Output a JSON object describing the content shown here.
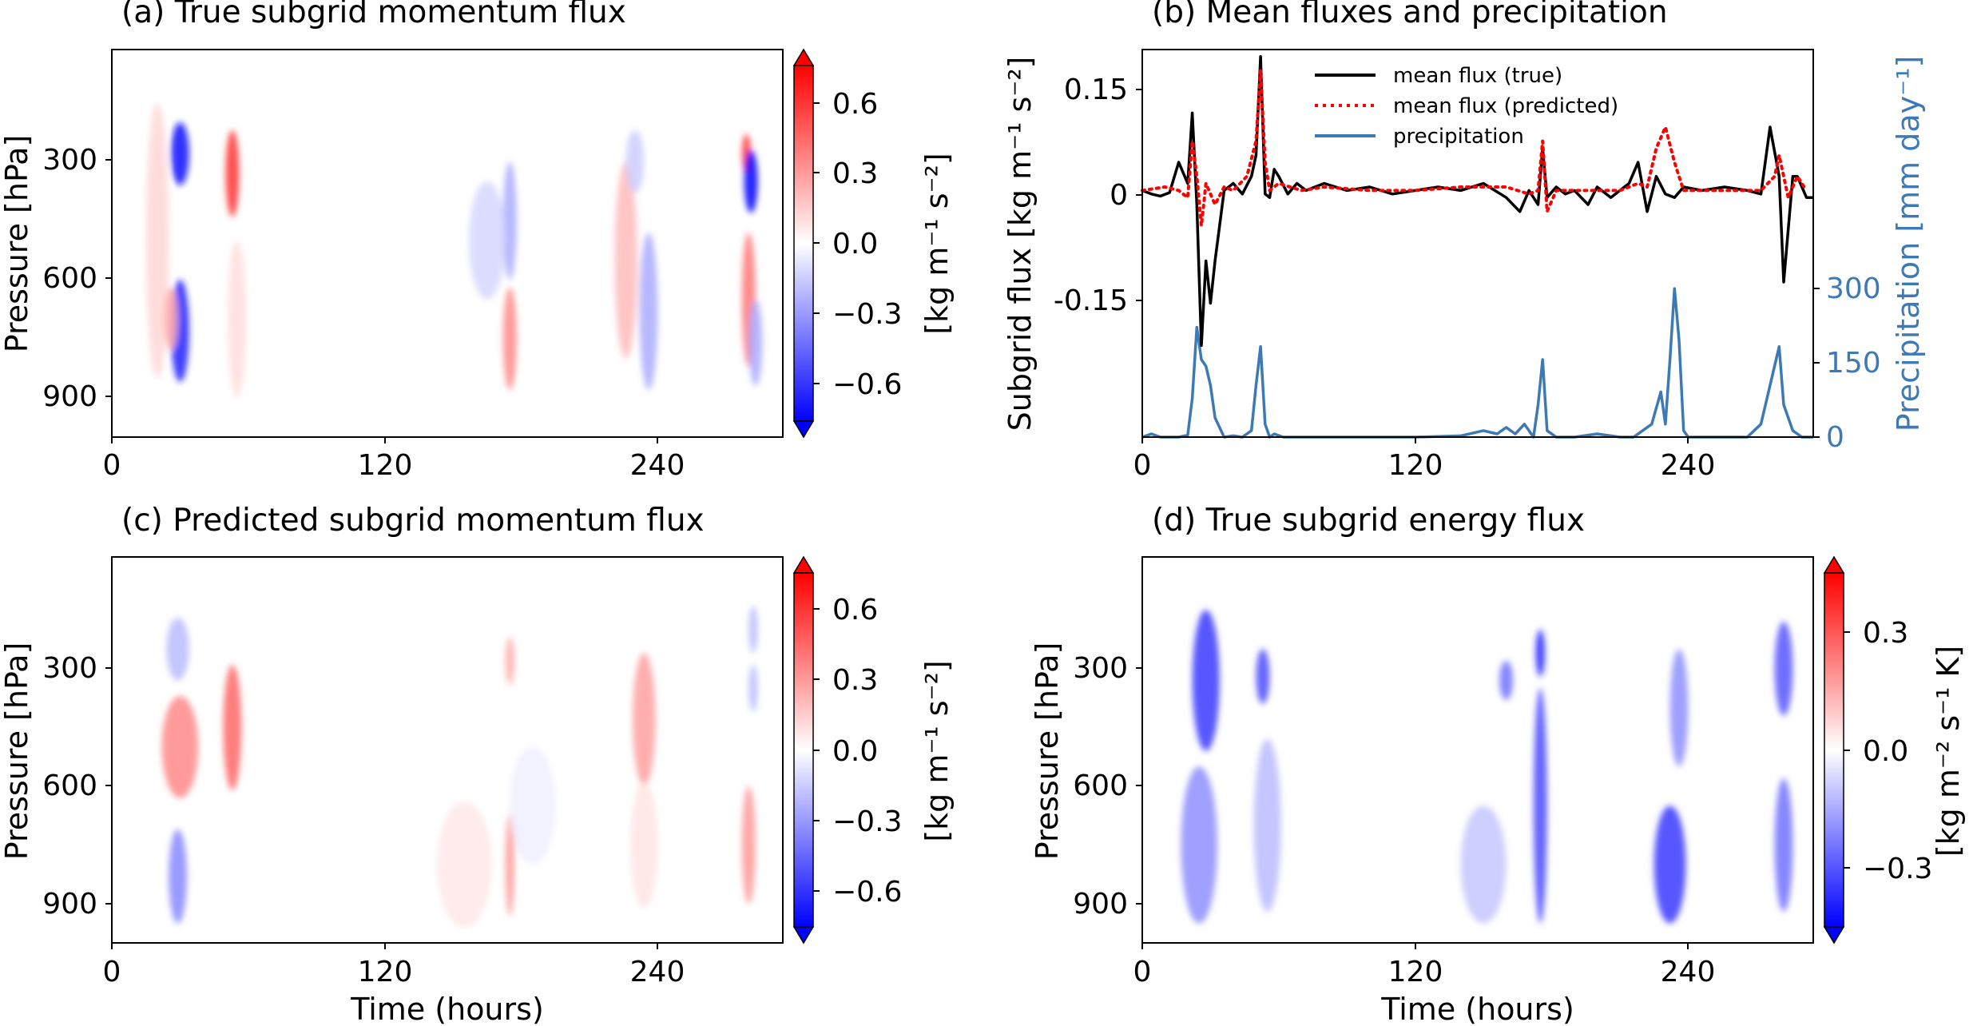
{
  "figure": {
    "x_ticks": [
      "0",
      "120",
      "240"
    ],
    "pressure_ticks": [
      "300",
      "600",
      "900"
    ]
  },
  "chart_data": [
    {
      "id": "a",
      "type": "heatmap",
      "title": "(a) True subgrid momentum flux",
      "xlabel": "",
      "ylabel": "Pressure [hPa]",
      "xlim": [
        0,
        295
      ],
      "ylim": [
        1000,
        15
      ],
      "colorbar": {
        "label": "[kg m⁻¹ s⁻²]",
        "ticks": [
          "0.6",
          "0.3",
          "0.0",
          "−0.3",
          "−0.6"
        ],
        "range": [
          -0.75,
          0.75
        ],
        "colormap": "bwr",
        "low_color": "#0000ff",
        "high_color": "#ff0000"
      },
      "features": [
        {
          "t": 20,
          "p": 500,
          "dt": 5,
          "dp": 350,
          "v": 0.12
        },
        {
          "t": 30,
          "p": 280,
          "dt": 4,
          "dp": 80,
          "v": -0.7
        },
        {
          "t": 30,
          "p": 730,
          "dt": 4,
          "dp": 130,
          "v": -0.65
        },
        {
          "t": 26,
          "p": 700,
          "dt": 3,
          "dp": 80,
          "v": 0.25
        },
        {
          "t": 53,
          "p": 330,
          "dt": 3,
          "dp": 110,
          "v": 0.6
        },
        {
          "t": 55,
          "p": 700,
          "dt": 4,
          "dp": 200,
          "v": 0.1
        },
        {
          "t": 175,
          "p": 750,
          "dt": 3,
          "dp": 130,
          "v": 0.35
        },
        {
          "t": 175,
          "p": 450,
          "dt": 3,
          "dp": 150,
          "v": -0.25
        },
        {
          "t": 165,
          "p": 500,
          "dt": 8,
          "dp": 150,
          "v": -0.12
        },
        {
          "t": 226,
          "p": 550,
          "dt": 5,
          "dp": 250,
          "v": 0.2
        },
        {
          "t": 236,
          "p": 680,
          "dt": 4,
          "dp": 200,
          "v": -0.25
        },
        {
          "t": 230,
          "p": 300,
          "dt": 4,
          "dp": 80,
          "v": -0.15
        },
        {
          "t": 279,
          "p": 280,
          "dt": 2,
          "dp": 50,
          "v": 0.6
        },
        {
          "t": 281,
          "p": 350,
          "dt": 3,
          "dp": 80,
          "v": -0.75
        },
        {
          "t": 280,
          "p": 650,
          "dt": 3,
          "dp": 170,
          "v": 0.4
        },
        {
          "t": 283,
          "p": 760,
          "dt": 3,
          "dp": 110,
          "v": -0.25
        }
      ]
    },
    {
      "id": "b",
      "type": "line",
      "title": "(b) Mean fluxes and precipitation",
      "xlabel": "",
      "ylabel": "Subgrid flux [kg m⁻¹ s⁻²]",
      "ylabel_right": "Precipitation  [mm day⁻¹]",
      "xlim": [
        0,
        295
      ],
      "ylim": [
        -0.35,
        0.2
      ],
      "ylim_right": [
        0,
        600
      ],
      "yticks": [
        "0.15",
        "0",
        "-0.15"
      ],
      "yticks_right": [
        "300",
        "150",
        "0"
      ],
      "legend_position": "top-center",
      "series": [
        {
          "name": "mean flux (true)",
          "color": "#000000",
          "style": "solid",
          "x": [
            0,
            4,
            8,
            12,
            16,
            20,
            22,
            24,
            26,
            28,
            30,
            32,
            36,
            40,
            44,
            48,
            50,
            52,
            54,
            56,
            58,
            60,
            64,
            68,
            72,
            80,
            90,
            100,
            110,
            120,
            130,
            140,
            150,
            160,
            166,
            170,
            174,
            176,
            178,
            182,
            186,
            190,
            196,
            200,
            206,
            210,
            214,
            218,
            222,
            226,
            230,
            234,
            238,
            246,
            256,
            266,
            272,
            276,
            280,
            282,
            286,
            288,
            292,
            295
          ],
          "y": [
            0,
            -0.005,
            -0.008,
            -0.003,
            0.04,
            0.01,
            0.11,
            -0.02,
            -0.22,
            -0.1,
            -0.16,
            -0.1,
            0,
            0.01,
            -0.005,
            0.02,
            0.05,
            0.19,
            -0.005,
            -0.01,
            0.03,
            0.02,
            -0.005,
            0.01,
            0,
            0.01,
            0,
            0.005,
            -0.005,
            0,
            0.005,
            0,
            0.01,
            -0.01,
            -0.03,
            0,
            -0.02,
            0.06,
            -0.01,
            0.005,
            -0.005,
            0,
            -0.02,
            0.005,
            -0.01,
            0,
            0.01,
            0.04,
            -0.03,
            0.02,
            -0.005,
            -0.01,
            0.005,
            0,
            0.005,
            0,
            -0.005,
            0.09,
            0.02,
            -0.13,
            0.02,
            0.02,
            -0.01,
            -0.01
          ]
        },
        {
          "name": "mean flux (predicted)",
          "color": "#ff0000",
          "style": "dotted",
          "x": [
            0,
            10,
            16,
            20,
            22,
            24,
            26,
            28,
            32,
            36,
            40,
            46,
            50,
            52,
            54,
            56,
            60,
            70,
            80,
            100,
            120,
            140,
            160,
            170,
            174,
            176,
            178,
            182,
            190,
            200,
            210,
            218,
            222,
            226,
            230,
            234,
            238,
            244,
            252,
            262,
            272,
            278,
            280,
            284,
            288,
            292
          ],
          "y": [
            0,
            0.005,
            0,
            -0.01,
            0.07,
            0.02,
            -0.05,
            0.01,
            -0.02,
            0.005,
            0,
            0.02,
            0.07,
            0.17,
            0.04,
            0,
            0.01,
            0,
            0.005,
            0,
            0,
            0.005,
            0.005,
            -0.005,
            0,
            0.07,
            -0.03,
            0,
            0,
            0,
            0,
            0.01,
            0.005,
            0.06,
            0.09,
            0.04,
            0,
            0,
            0,
            0,
            0,
            0.02,
            0.05,
            -0.01,
            0.02,
            0
          ]
        },
        {
          "name": "precipitation",
          "color": "#3d7ab5",
          "style": "solid",
          "axis": "right",
          "x": [
            0,
            4,
            8,
            12,
            16,
            20,
            22,
            24,
            26,
            28,
            30,
            32,
            36,
            40,
            44,
            48,
            50,
            52,
            54,
            56,
            58,
            62,
            70,
            80,
            100,
            120,
            140,
            150,
            156,
            160,
            164,
            168,
            170,
            172,
            174,
            176,
            178,
            182,
            190,
            200,
            210,
            216,
            220,
            224,
            228,
            230,
            232,
            234,
            236,
            238,
            240,
            246,
            256,
            266,
            272,
            276,
            280,
            282,
            286,
            290,
            295
          ],
          "y": [
            0,
            5,
            0,
            0,
            0,
            3,
            60,
            170,
            120,
            110,
            80,
            30,
            0,
            2,
            0,
            10,
            80,
            140,
            20,
            0,
            5,
            0,
            0,
            0,
            0,
            0,
            2,
            10,
            5,
            15,
            5,
            20,
            10,
            0,
            50,
            120,
            10,
            0,
            0,
            5,
            0,
            0,
            10,
            20,
            70,
            20,
            120,
            230,
            150,
            10,
            0,
            0,
            0,
            0,
            20,
            80,
            140,
            50,
            10,
            0,
            0
          ]
        }
      ]
    },
    {
      "id": "c",
      "type": "heatmap",
      "title": "(c) Predicted subgrid momentum flux",
      "xlabel": "Time (hours)",
      "ylabel": "Pressure [hPa]",
      "xlim": [
        0,
        295
      ],
      "ylim": [
        1000,
        15
      ],
      "colorbar": {
        "label": "[kg m⁻¹ s⁻²]",
        "ticks": [
          "0.6",
          "0.3",
          "0.0",
          "−0.3",
          "−0.6"
        ],
        "range": [
          -0.75,
          0.75
        ],
        "colormap": "bwr",
        "low_color": "#0000ff",
        "high_color": "#ff0000"
      },
      "features": [
        {
          "t": 29,
          "p": 250,
          "dt": 5,
          "dp": 80,
          "v": -0.2
        },
        {
          "t": 30,
          "p": 500,
          "dt": 8,
          "dp": 130,
          "v": 0.35
        },
        {
          "t": 29,
          "p": 830,
          "dt": 4,
          "dp": 120,
          "v": -0.35
        },
        {
          "t": 53,
          "p": 450,
          "dt": 4,
          "dp": 160,
          "v": 0.45
        },
        {
          "t": 155,
          "p": 800,
          "dt": 12,
          "dp": 160,
          "v": 0.07
        },
        {
          "t": 175,
          "p": 280,
          "dt": 2,
          "dp": 60,
          "v": 0.25
        },
        {
          "t": 175,
          "p": 800,
          "dt": 2,
          "dp": 130,
          "v": 0.3
        },
        {
          "t": 185,
          "p": 650,
          "dt": 10,
          "dp": 150,
          "v": -0.05
        },
        {
          "t": 234,
          "p": 430,
          "dt": 5,
          "dp": 170,
          "v": 0.28
        },
        {
          "t": 234,
          "p": 750,
          "dt": 6,
          "dp": 160,
          "v": 0.08
        },
        {
          "t": 282,
          "p": 200,
          "dt": 2,
          "dp": 60,
          "v": -0.2
        },
        {
          "t": 282,
          "p": 350,
          "dt": 2,
          "dp": 60,
          "v": -0.2
        },
        {
          "t": 280,
          "p": 750,
          "dt": 3,
          "dp": 150,
          "v": 0.3
        }
      ]
    },
    {
      "id": "d",
      "type": "heatmap",
      "title": "(d) True subgrid energy flux",
      "xlabel": "Time (hours)",
      "ylabel": "Pressure [hPa]",
      "xlim": [
        0,
        295
      ],
      "ylim": [
        1000,
        15
      ],
      "colorbar": {
        "label": "[kg m⁻² s⁻¹ K]",
        "ticks": [
          "0.3",
          "0.0",
          "−0.3"
        ],
        "range": [
          -0.45,
          0.45
        ],
        "colormap": "bwr",
        "low_color": "#0000ff",
        "high_color": "#ff0000"
      },
      "features": [
        {
          "t": 28,
          "p": 330,
          "dt": 6,
          "dp": 180,
          "v": -0.35
        },
        {
          "t": 25,
          "p": 750,
          "dt": 8,
          "dp": 200,
          "v": -0.2
        },
        {
          "t": 53,
          "p": 320,
          "dt": 3,
          "dp": 70,
          "v": -0.32
        },
        {
          "t": 55,
          "p": 700,
          "dt": 6,
          "dp": 220,
          "v": -0.12
        },
        {
          "t": 160,
          "p": 330,
          "dt": 3,
          "dp": 50,
          "v": -0.25
        },
        {
          "t": 150,
          "p": 800,
          "dt": 10,
          "dp": 150,
          "v": -0.1
        },
        {
          "t": 175,
          "p": 260,
          "dt": 2,
          "dp": 60,
          "v": -0.4
        },
        {
          "t": 175,
          "p": 650,
          "dt": 3,
          "dp": 300,
          "v": -0.32
        },
        {
          "t": 236,
          "p": 400,
          "dt": 4,
          "dp": 150,
          "v": -0.2
        },
        {
          "t": 232,
          "p": 800,
          "dt": 7,
          "dp": 150,
          "v": -0.35
        },
        {
          "t": 282,
          "p": 300,
          "dt": 4,
          "dp": 120,
          "v": -0.3
        },
        {
          "t": 282,
          "p": 750,
          "dt": 4,
          "dp": 170,
          "v": -0.25
        }
      ]
    }
  ]
}
